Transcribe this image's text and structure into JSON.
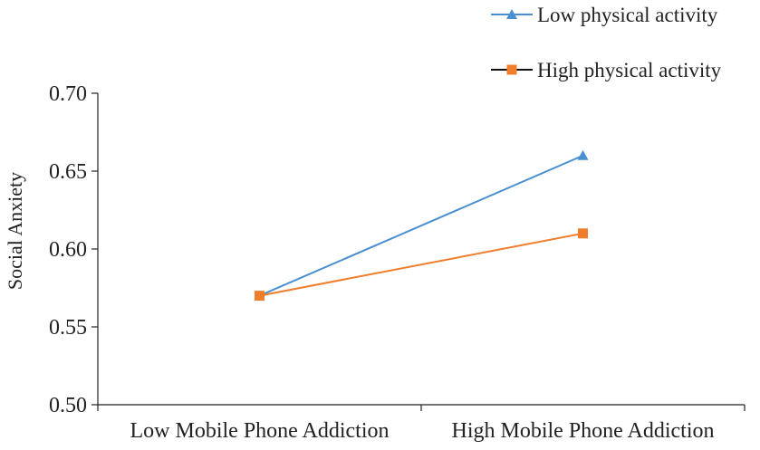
{
  "chart_data": {
    "type": "line",
    "title": "",
    "xlabel": "",
    "ylabel": "Social Anxiety",
    "categories": [
      "Low Mobile Phone Addiction",
      "High Mobile Phone Addiction"
    ],
    "ylim": [
      0.5,
      0.7
    ],
    "yticks": [
      "0.50",
      "0.55",
      "0.60",
      "0.65",
      "0.70"
    ],
    "grid": false,
    "legend_position": "top-right",
    "series": [
      {
        "name": "Low physical activity",
        "values": [
          0.57,
          0.66
        ],
        "color": "#4a8fd0",
        "marker": "triangle"
      },
      {
        "name": "High physical activity",
        "values": [
          0.57,
          0.61
        ],
        "color": "#f07d2c",
        "marker": "square"
      }
    ]
  }
}
